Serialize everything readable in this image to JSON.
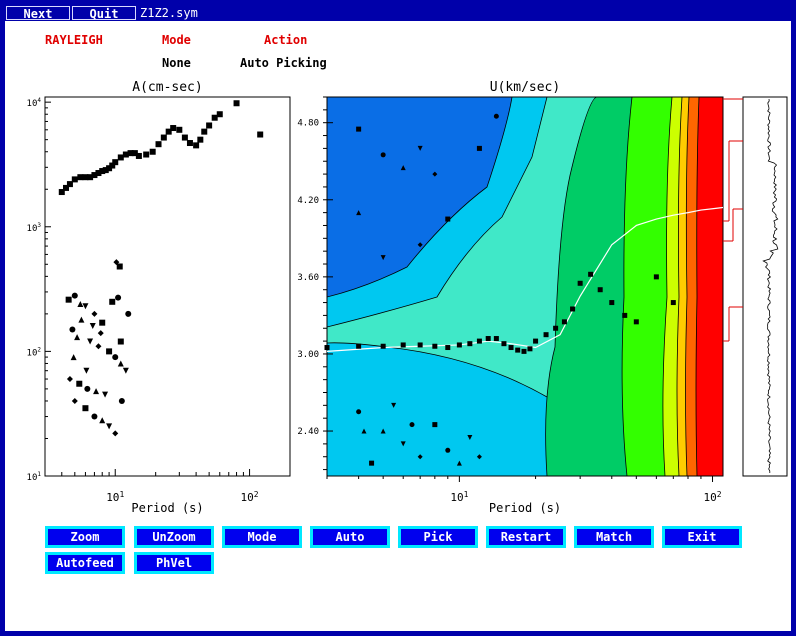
{
  "toolbar": {
    "next": "Next",
    "quit": "Quit",
    "filename": "Z1Z2.sym"
  },
  "header": {
    "wave_type": "RAYLEIGH",
    "mode_label": "Mode",
    "mode_value": "None",
    "action_label": "Action",
    "action_value": "Auto Picking"
  },
  "left_plot": {
    "title": "A(cm-sec)",
    "xlabel": "Period (s)",
    "y_ticks": [
      {
        "base": "10",
        "exp": "4",
        "v": 10000
      },
      {
        "base": "10",
        "exp": "3",
        "v": 1000
      },
      {
        "base": "10",
        "exp": "2",
        "v": 100
      },
      {
        "base": "10",
        "exp": "1",
        "v": 10
      }
    ],
    "x_ticks": [
      {
        "label": "10",
        "sup": "1",
        "v": 10
      },
      {
        "label": "10",
        "sup": "2",
        "v": 100
      }
    ]
  },
  "right_plot": {
    "title": "U(km/sec)",
    "xlabel": "Period (s)",
    "y_ticks": [
      "4.80",
      "4.20",
      "3.60",
      "3.00",
      "2.40"
    ],
    "x_ticks": [
      {
        "label": "10",
        "sup": "1",
        "v": 10
      },
      {
        "label": "10",
        "sup": "2",
        "v": 100
      }
    ]
  },
  "buttons": {
    "zoom": "Zoom",
    "unzoom": "UnZoom",
    "mode": "Mode",
    "auto": "Auto",
    "pick": "Pick",
    "restart": "Restart",
    "match": "Match",
    "exit": "Exit",
    "autofeed": "Autofeed",
    "phvel": "PhVel"
  },
  "colors": {
    "window": "#0000aa",
    "button_face": "#0000ee",
    "button_border": "#00e8ff",
    "contour_levels": [
      "#0a6ee6",
      "#00c8f0",
      "#40e8c8",
      "#00cc66",
      "#33ff00",
      "#ccff00",
      "#ffcc00",
      "#ff6600",
      "#ff0000"
    ]
  },
  "chart_data": [
    {
      "type": "scatter",
      "title": "A(cm-sec)",
      "xlabel": "Period (s)",
      "xscale": "log",
      "yscale": "log",
      "xlim": [
        3,
        200
      ],
      "ylim": [
        10,
        11000
      ],
      "series": [
        {
          "marker": "square",
          "x": [
            4.0,
            4.3,
            4.6,
            5.0,
            5.5,
            6.0,
            6.5,
            7.0,
            7.5,
            8.0,
            8.5,
            9.0,
            9.5,
            10,
            11,
            12,
            13,
            14,
            15,
            17,
            19,
            21,
            23,
            25,
            27,
            30,
            33,
            36,
            40,
            43,
            46,
            50,
            55,
            60,
            80,
            120
          ],
          "y": [
            1900,
            2050,
            2200,
            2400,
            2500,
            2500,
            2500,
            2600,
            2700,
            2800,
            2850,
            2950,
            3100,
            3300,
            3600,
            3800,
            3900,
            3900,
            3700,
            3800,
            4000,
            4600,
            5200,
            5800,
            6200,
            6000,
            5200,
            4700,
            4500,
            5000,
            5800,
            6500,
            7500,
            8000,
            9800,
            5500
          ]
        },
        {
          "marker": "scatter-mixed",
          "x": [
            4.5,
            5,
            5.5,
            6,
            7,
            8,
            4.8,
            5.2,
            6.5,
            7.5,
            9,
            10,
            11,
            12,
            4.6,
            5.4,
            6.2,
            7.2,
            8.4,
            5,
            6,
            7,
            8,
            9,
            10,
            11,
            12.5,
            5.6,
            6.8,
            7.8,
            9.5,
            10.5,
            4.9,
            6.1,
            10.2,
            10.8,
            11.2
          ],
          "y": [
            260,
            280,
            240,
            230,
            200,
            170,
            150,
            130,
            120,
            110,
            100,
            90,
            80,
            70,
            60,
            55,
            50,
            48,
            45,
            40,
            35,
            30,
            28,
            25,
            22,
            120,
            200,
            180,
            160,
            140,
            250,
            270,
            90,
            70,
            520,
            480,
            40
          ]
        }
      ]
    },
    {
      "type": "heatmap",
      "title": "U(km/sec)",
      "xlabel": "Period (s)",
      "xscale": "log",
      "xlim": [
        3,
        110
      ],
      "ylim": [
        2.05,
        5.0
      ],
      "series": [
        {
          "name": "picked_dispersion",
          "marker": "square",
          "x": [
            3,
            4,
            5,
            6,
            7,
            8,
            9,
            10,
            11,
            12,
            13,
            14,
            15,
            16,
            17,
            18,
            19,
            20,
            22,
            24,
            26,
            28,
            30,
            33,
            36,
            40,
            45,
            50,
            60,
            70
          ],
          "y": [
            3.05,
            3.06,
            3.06,
            3.07,
            3.07,
            3.06,
            3.05,
            3.07,
            3.08,
            3.1,
            3.12,
            3.12,
            3.08,
            3.05,
            3.03,
            3.02,
            3.04,
            3.1,
            3.15,
            3.2,
            3.25,
            3.35,
            3.55,
            3.62,
            3.5,
            3.4,
            3.3,
            3.25,
            3.6,
            3.4
          ]
        },
        {
          "name": "predicted_curve",
          "marker": "line",
          "x": [
            3,
            5,
            7,
            10,
            13,
            16,
            20,
            25,
            30,
            40,
            50,
            60,
            70,
            80,
            90,
            100,
            110
          ],
          "y": [
            3.02,
            3.05,
            3.06,
            3.07,
            3.1,
            3.08,
            3.05,
            3.15,
            3.45,
            3.85,
            4.0,
            4.05,
            4.08,
            4.1,
            4.12,
            4.13,
            4.14
          ]
        }
      ]
    }
  ]
}
